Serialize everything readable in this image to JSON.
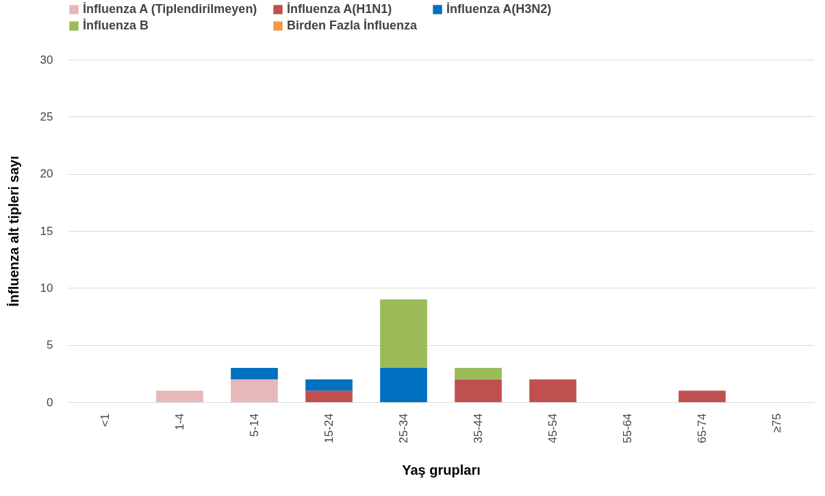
{
  "chart_data": {
    "type": "bar",
    "stacked": true,
    "xlabel": "Yaş grupları",
    "ylabel": "İnfluenza alt tipleri sayı",
    "categories": [
      "<1",
      "1-4",
      "5-14",
      "15-24",
      "25-34",
      "35-44",
      "45-54",
      "55-64",
      "65-74",
      "≥75"
    ],
    "series": [
      {
        "name": "İnfluenza A (Tiplendirilmeyen)",
        "color": "#e6b9b8",
        "values": [
          0,
          1,
          2,
          0,
          0,
          0,
          0,
          0,
          0,
          0
        ]
      },
      {
        "name": "İnfluenza A(H1N1)",
        "color": "#c0504d",
        "values": [
          0,
          0,
          0,
          1,
          0,
          2,
          2,
          0,
          1,
          0
        ]
      },
      {
        "name": "İnfluenza A(H3N2)",
        "color": "#0070c0",
        "values": [
          0,
          0,
          1,
          1,
          3,
          0,
          0,
          0,
          0,
          0
        ]
      },
      {
        "name": "İnfluenza B",
        "color": "#9bbb59",
        "values": [
          0,
          0,
          0,
          0,
          6,
          1,
          0,
          0,
          0,
          0
        ]
      },
      {
        "name": "Birden Fazla İnfluenza",
        "color": "#f79646",
        "values": [
          0,
          0,
          0,
          0,
          0,
          0,
          0,
          0,
          0,
          0
        ]
      }
    ],
    "ylim": [
      0,
      30
    ],
    "yticks": [
      0,
      5,
      10,
      15,
      20,
      25,
      30
    ],
    "grid": "y",
    "legend": "top"
  }
}
